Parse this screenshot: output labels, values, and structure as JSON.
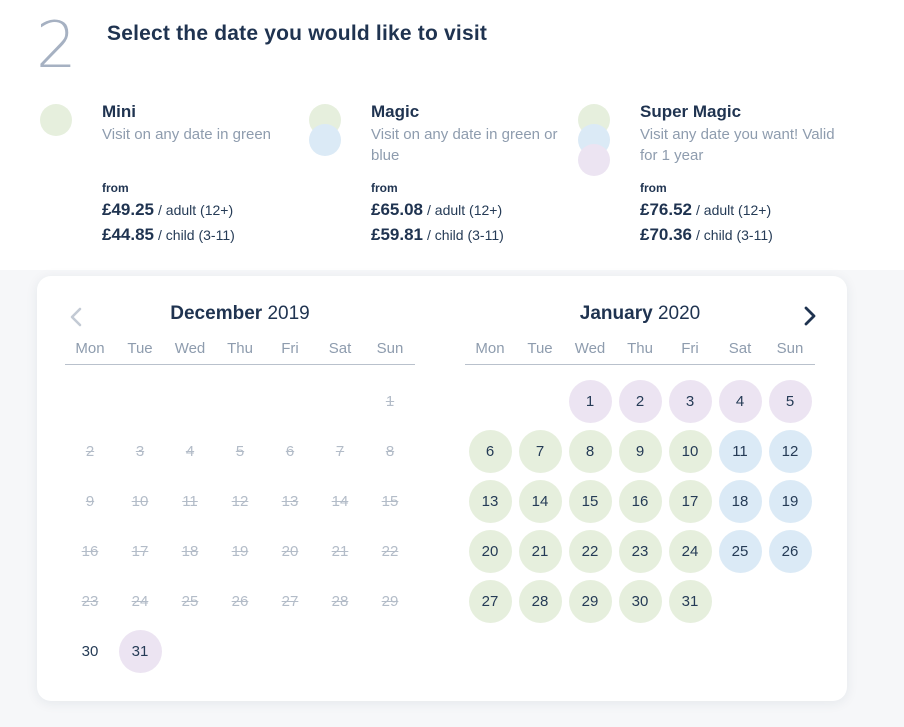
{
  "step": {
    "number": "2",
    "title": "Select the date you would like to visit"
  },
  "colors": {
    "green": "#e6efdd",
    "blue": "#dbeaf6",
    "purple": "#ece4f2"
  },
  "tickets": [
    {
      "name": "Mini",
      "description": "Visit on any date in green",
      "from_label": "from",
      "adult_price": "£49.25",
      "adult_label": "/ adult (12+)",
      "child_price": "£44.85",
      "child_label": "/ child (3-11)",
      "dots": [
        "green"
      ]
    },
    {
      "name": "Magic",
      "description": "Visit on any date in green or blue",
      "from_label": "from",
      "adult_price": "£65.08",
      "adult_label": "/ adult (12+)",
      "child_price": "£59.81",
      "child_label": "/ child (3-11)",
      "dots": [
        "green",
        "blue"
      ]
    },
    {
      "name": "Super Magic",
      "description": "Visit any date you want! Valid for 1 year",
      "from_label": "from",
      "adult_price": "£76.52",
      "adult_label": "/ adult (12+)",
      "child_price": "£70.36",
      "child_label": "/ child (3-11)",
      "dots": [
        "green",
        "blue",
        "purple"
      ]
    }
  ],
  "calendar": {
    "prev_icon": "chevron-left-icon",
    "next_icon": "chevron-right-icon",
    "weekdays": [
      "Mon",
      "Tue",
      "Wed",
      "Thu",
      "Fri",
      "Sat",
      "Sun"
    ],
    "months": [
      {
        "name": "December",
        "year": "2019",
        "start_weekday": 7,
        "days": [
          {
            "d": "1",
            "s": "past"
          },
          {
            "d": "2",
            "s": "past"
          },
          {
            "d": "3",
            "s": "past"
          },
          {
            "d": "4",
            "s": "past"
          },
          {
            "d": "5",
            "s": "past"
          },
          {
            "d": "6",
            "s": "past"
          },
          {
            "d": "7",
            "s": "past"
          },
          {
            "d": "8",
            "s": "past"
          },
          {
            "d": "9",
            "s": "past"
          },
          {
            "d": "10",
            "s": "past"
          },
          {
            "d": "11",
            "s": "past"
          },
          {
            "d": "12",
            "s": "past"
          },
          {
            "d": "13",
            "s": "past"
          },
          {
            "d": "14",
            "s": "past"
          },
          {
            "d": "15",
            "s": "past"
          },
          {
            "d": "16",
            "s": "past"
          },
          {
            "d": "17",
            "s": "past"
          },
          {
            "d": "18",
            "s": "past"
          },
          {
            "d": "19",
            "s": "past"
          },
          {
            "d": "20",
            "s": "past"
          },
          {
            "d": "21",
            "s": "past"
          },
          {
            "d": "22",
            "s": "past"
          },
          {
            "d": "23",
            "s": "past"
          },
          {
            "d": "24",
            "s": "past"
          },
          {
            "d": "25",
            "s": "past"
          },
          {
            "d": "26",
            "s": "past"
          },
          {
            "d": "27",
            "s": "past"
          },
          {
            "d": "28",
            "s": "past"
          },
          {
            "d": "29",
            "s": "past"
          },
          {
            "d": "30",
            "s": "none"
          },
          {
            "d": "31",
            "s": "purple"
          }
        ]
      },
      {
        "name": "January",
        "year": "2020",
        "start_weekday": 3,
        "days": [
          {
            "d": "1",
            "s": "purple"
          },
          {
            "d": "2",
            "s": "purple"
          },
          {
            "d": "3",
            "s": "purple"
          },
          {
            "d": "4",
            "s": "purple"
          },
          {
            "d": "5",
            "s": "purple"
          },
          {
            "d": "6",
            "s": "green"
          },
          {
            "d": "7",
            "s": "green"
          },
          {
            "d": "8",
            "s": "green"
          },
          {
            "d": "9",
            "s": "green"
          },
          {
            "d": "10",
            "s": "green"
          },
          {
            "d": "11",
            "s": "blue"
          },
          {
            "d": "12",
            "s": "blue"
          },
          {
            "d": "13",
            "s": "green"
          },
          {
            "d": "14",
            "s": "green"
          },
          {
            "d": "15",
            "s": "green"
          },
          {
            "d": "16",
            "s": "green"
          },
          {
            "d": "17",
            "s": "green"
          },
          {
            "d": "18",
            "s": "blue"
          },
          {
            "d": "19",
            "s": "blue"
          },
          {
            "d": "20",
            "s": "green"
          },
          {
            "d": "21",
            "s": "green"
          },
          {
            "d": "22",
            "s": "green"
          },
          {
            "d": "23",
            "s": "green"
          },
          {
            "d": "24",
            "s": "green"
          },
          {
            "d": "25",
            "s": "blue"
          },
          {
            "d": "26",
            "s": "blue"
          },
          {
            "d": "27",
            "s": "green"
          },
          {
            "d": "28",
            "s": "green"
          },
          {
            "d": "29",
            "s": "green"
          },
          {
            "d": "30",
            "s": "green"
          },
          {
            "d": "31",
            "s": "green"
          }
        ]
      }
    ]
  }
}
